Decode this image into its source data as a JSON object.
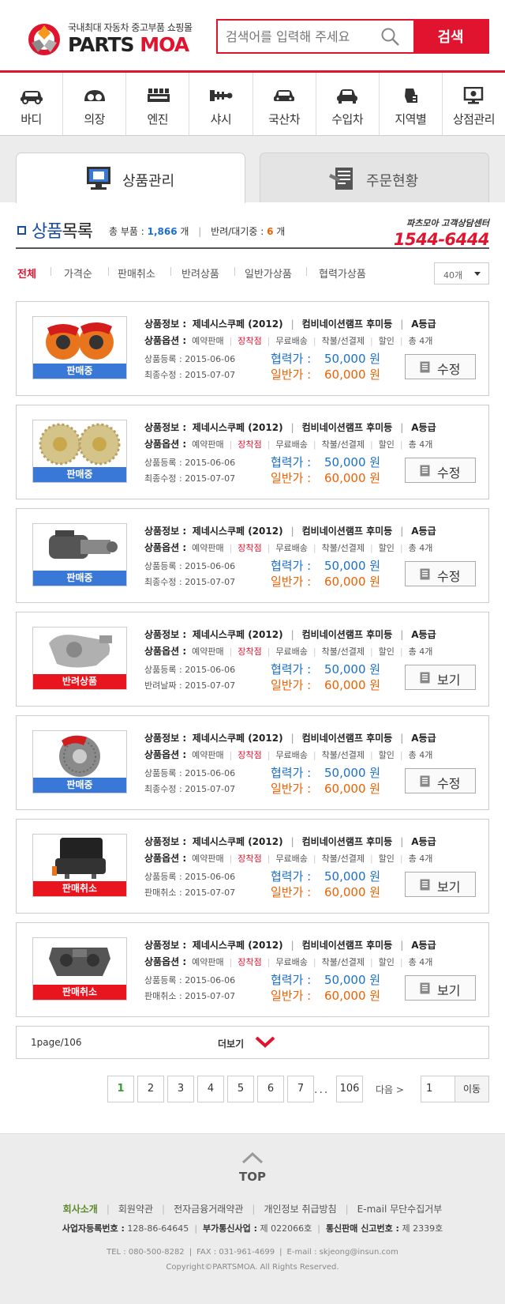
{
  "header": {
    "logo_sub": "국내최대 자동차 중고부품 쇼핑몰",
    "logo_main_a": "PARTS",
    "logo_main_b": "MOA",
    "search_placeholder": "검색어를 입력해 주세요",
    "search_button": "검색"
  },
  "categories": [
    {
      "label": "바디",
      "icon": "car-body-icon"
    },
    {
      "label": "의장",
      "icon": "dashboard-icon"
    },
    {
      "label": "엔진",
      "icon": "engine-icon"
    },
    {
      "label": "샤시",
      "icon": "chassis-icon"
    },
    {
      "label": "국산차",
      "icon": "domestic-car-icon"
    },
    {
      "label": "수입차",
      "icon": "imported-car-icon"
    },
    {
      "label": "지역별",
      "icon": "region-icon"
    },
    {
      "label": "상점관리",
      "icon": "store-admin-icon"
    }
  ],
  "tabs": {
    "active": "상품관리",
    "inactive": "주문현황"
  },
  "section": {
    "title_a": "상품",
    "title_b": "목록",
    "total_label": "총 부품 :",
    "total_value": "1,866",
    "total_unit": "개",
    "return_label": "반려/대기중 :",
    "return_value": "6",
    "return_unit": "개",
    "cs_title": "파츠모아 고객상담센터",
    "cs_number": "1544-6444"
  },
  "filters": {
    "items": [
      "전체",
      "가격순",
      "판매취소",
      "반려상품",
      "일반가상품",
      "협력가상품"
    ],
    "per_page": "40개"
  },
  "colors": {
    "accent_red": "#e0142e",
    "badge_blue": "#3a78d8",
    "badge_red": "#e8141e",
    "price_blue": "#1a6fd0",
    "price_orange": "#f06000"
  },
  "products": [
    {
      "info_label": "상품정보 :",
      "model": "제네시스쿠페 (2012)",
      "part": "컴비네이션램프 후미등",
      "grade": "A등급",
      "opt_label": "상품옵션 :",
      "opts": [
        "예약판매",
        "장착점",
        "무료배송",
        "착불/선결제",
        "할인",
        "총 4개"
      ],
      "reg_label": "상품등록 :",
      "reg_date": "2015-06-06",
      "mod_label": "최종수정 :",
      "mod_date": "2015-07-07",
      "coop_label": "협력가 :",
      "coop_price": "50,000 원",
      "normal_label": "일반가 :",
      "normal_price": "60,000 원",
      "status": "판매중",
      "status_color": "blue",
      "action": "수정",
      "image": "brake-caliper-red"
    },
    {
      "info_label": "상품정보 :",
      "model": "제네시스쿠페 (2012)",
      "part": "컴비네이션램프 후미등",
      "grade": "A등급",
      "opt_label": "상품옵션 :",
      "opts": [
        "예약판매",
        "장착점",
        "무료배송",
        "착불/선결제",
        "할인",
        "총 4개"
      ],
      "reg_label": "상품등록 :",
      "reg_date": "2015-06-06",
      "mod_label": "최종수정 :",
      "mod_date": "2015-07-07",
      "coop_label": "협력가 :",
      "coop_price": "50,000 원",
      "normal_label": "일반가 :",
      "normal_price": "60,000 원",
      "status": "판매중",
      "status_color": "blue",
      "action": "수정",
      "image": "brake-discs-gold"
    },
    {
      "info_label": "상품정보 :",
      "model": "제네시스쿠페 (2012)",
      "part": "컴비네이션램프 후미등",
      "grade": "A등급",
      "opt_label": "상품옵션 :",
      "opts": [
        "예약판매",
        "장착점",
        "무료배송",
        "착불/선결제",
        "할인",
        "총 4개"
      ],
      "reg_label": "상품등록 :",
      "reg_date": "2015-06-06",
      "mod_label": "최종수정 :",
      "mod_date": "2015-07-07",
      "coop_label": "협력가 :",
      "coop_price": "50,000 원",
      "normal_label": "일반가 :",
      "normal_price": "60,000 원",
      "status": "판매중",
      "status_color": "blue",
      "action": "수정",
      "image": "starter-motor"
    },
    {
      "info_label": "상품정보 :",
      "model": "제네시스쿠페 (2012)",
      "part": "컴비네이션램프 후미등",
      "grade": "A등급",
      "opt_label": "상품옵션 :",
      "opts": [
        "예약판매",
        "장착점",
        "무료배송",
        "착불/선결제",
        "할인",
        "총 4개"
      ],
      "reg_label": "상품등록 :",
      "reg_date": "2015-06-06",
      "mod_label": "반려날짜 :",
      "mod_date": "2015-07-07",
      "coop_label": "협력가 :",
      "coop_price": "50,000 원",
      "normal_label": "일반가 :",
      "normal_price": "60,000 원",
      "status": "반려상품",
      "status_color": "red",
      "action": "보기",
      "image": "pump-housing"
    },
    {
      "info_label": "상품정보 :",
      "model": "제네시스쿠페 (2012)",
      "part": "컴비네이션램프 후미등",
      "grade": "A등급",
      "opt_label": "상품옵션 :",
      "opts": [
        "예약판매",
        "장착점",
        "무료배송",
        "착불/선결제",
        "할인",
        "총 4개"
      ],
      "reg_label": "상품등록 :",
      "reg_date": "2015-06-06",
      "mod_label": "최종수정 :",
      "mod_date": "2015-07-07",
      "coop_label": "협력가 :",
      "coop_price": "50,000 원",
      "normal_label": "일반가 :",
      "normal_price": "60,000 원",
      "status": "판매중",
      "status_color": "blue",
      "action": "수정",
      "image": "brake-disc-caliper"
    },
    {
      "info_label": "상품정보 :",
      "model": "제네시스쿠페 (2012)",
      "part": "컴비네이션램프 후미등",
      "grade": "A등급",
      "opt_label": "상품옵션 :",
      "opts": [
        "예약판매",
        "장착점",
        "무료배송",
        "착불/선결제",
        "할인",
        "총 4개"
      ],
      "reg_label": "상품등록 :",
      "reg_date": "2015-06-06",
      "mod_label": "판매취소 :",
      "mod_date": "2015-07-07",
      "coop_label": "협력가 :",
      "coop_price": "50,000 원",
      "normal_label": "일반가 :",
      "normal_price": "60,000 원",
      "status": "판매취소",
      "status_color": "red",
      "action": "보기",
      "image": "car-seat"
    },
    {
      "info_label": "상품정보 :",
      "model": "제네시스쿠페 (2012)",
      "part": "컴비네이션램프 후미등",
      "grade": "A등급",
      "opt_label": "상품옵션 :",
      "opts": [
        "예약판매",
        "장착점",
        "무료배송",
        "착불/선결제",
        "할인",
        "총 4개"
      ],
      "reg_label": "상품등록 :",
      "reg_date": "2015-06-06",
      "mod_label": "판매취소 :",
      "mod_date": "2015-07-07",
      "coop_label": "협력가 :",
      "coop_price": "50,000 원",
      "normal_label": "일반가 :",
      "normal_price": "60,000 원",
      "status": "판매취소",
      "status_color": "red",
      "action": "보기",
      "image": "caliper-bracket"
    }
  ],
  "more": {
    "page_info": "1page/106",
    "label": "더보기"
  },
  "pagination": {
    "pages": [
      "1",
      "2",
      "3",
      "4",
      "5",
      "6",
      "7"
    ],
    "current": "1",
    "dots": "...",
    "last": "106",
    "next": "다음 >",
    "goto_value": "1",
    "goto_button": "이동"
  },
  "footer": {
    "top_label": "TOP",
    "links": [
      "회사소개",
      "회원약관",
      "전자금융거래약관",
      "개인정보 취급방침",
      "E-mail 무단수집거부"
    ],
    "biz_label": "사업자등록번호 :",
    "biz_value": "128-86-64645",
    "vas_label": "부가통신사업 :",
    "vas_value": "제 022066호",
    "mail_label": "통신판매 신고번호 :",
    "mail_value": "제 2339호",
    "tel": "TEL : 080-500-8282",
    "fax": "FAX : 031-961-4699",
    "email": "E-mail : skjeong@insun.com",
    "copyright": "Copyright©PARTSMOA. All Rights Reserved."
  }
}
